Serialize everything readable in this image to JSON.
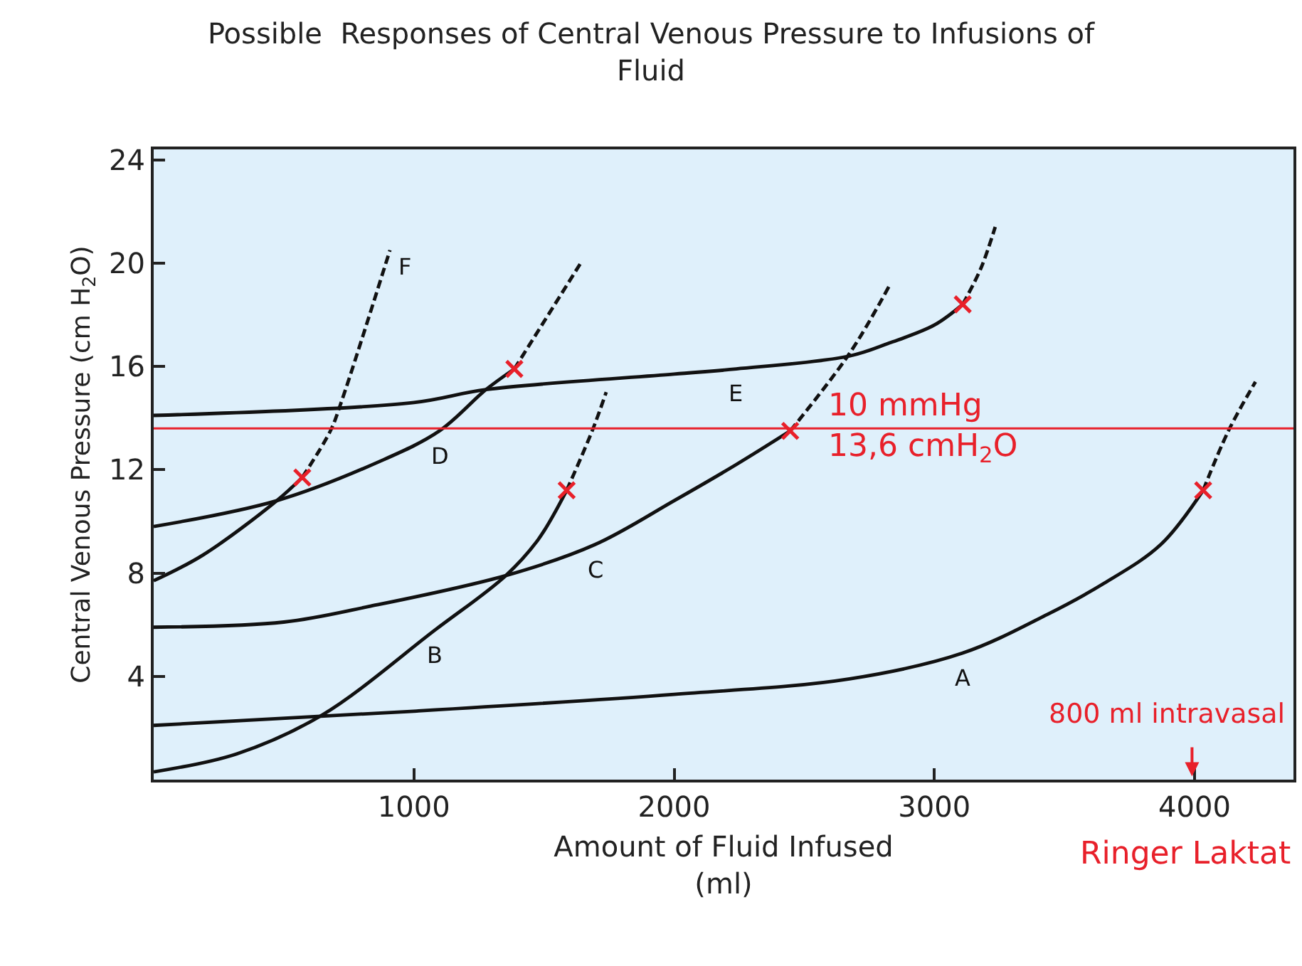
{
  "chart_data": {
    "type": "line",
    "title": "Possible  Responses of Central Venous Pressure to Infusions of Fluid",
    "xlabel": "Amount of Fluid Infused\n(ml)",
    "ylabel": "Central Venous Pressure (cm H$_{2}$O)",
    "xlim": [
      0,
      4380
    ],
    "xticks": [
      1000,
      2000,
      3000,
      4000
    ],
    "ylim": [
      0,
      24.4
    ],
    "yticks": [
      4,
      8,
      12,
      16,
      20,
      24
    ],
    "grid": false,
    "legend": false,
    "marker": "none",
    "series": [
      {
        "name": "A",
        "color": "#111111",
        "line_style": "solid",
        "x": [
          0,
          1000,
          2000,
          2674,
          3109,
          3435,
          3652,
          3870,
          4033
        ],
        "values": [
          2.1,
          2.65,
          3.3,
          3.9,
          4.9,
          6.4,
          7.6,
          9.1,
          11.2
        ]
      },
      {
        "color": "#111111",
        "line_style": "dashed",
        "x": [
          4033,
          4130,
          4234
        ],
        "values": [
          11.2,
          13.5,
          15.4
        ]
      },
      {
        "name": "B",
        "color": "#111111",
        "line_style": "solid",
        "x": [
          0,
          320,
          647,
          1082,
          1353,
          1478,
          1587
        ],
        "values": [
          0.3,
          1.0,
          2.5,
          5.8,
          7.9,
          9.3,
          11.2
        ]
      },
      {
        "color": "#111111",
        "line_style": "dashed",
        "x": [
          1587,
          1685,
          1739
        ],
        "values": [
          11.2,
          13.5,
          15.0
        ]
      },
      {
        "name": "C",
        "color": "#111111",
        "line_style": "solid",
        "x": [
          0,
          500,
          826,
          1353,
          1696,
          2000,
          2239,
          2446
        ],
        "values": [
          5.9,
          6.1,
          6.7,
          7.9,
          9.1,
          10.8,
          12.2,
          13.5
        ]
      },
      {
        "color": "#111111",
        "line_style": "dashed",
        "x": [
          2446,
          2674,
          2826
        ],
        "values": [
          13.5,
          16.5,
          19.1
        ]
      },
      {
        "name": "D",
        "color": "#111111",
        "line_style": "solid",
        "x": [
          0,
          473,
          864,
          1098,
          1277,
          1386
        ],
        "values": [
          9.8,
          10.8,
          12.3,
          13.5,
          15.1,
          15.9
        ]
      },
      {
        "color": "#111111",
        "line_style": "dashed",
        "x": [
          1386,
          1641
        ],
        "values": [
          15.9,
          20.0
        ]
      },
      {
        "name": "E",
        "color": "#111111",
        "line_style": "solid",
        "x": [
          0,
          1000,
          1277,
          2000,
          2239,
          2674,
          2826,
          3000,
          3109
        ],
        "values": [
          14.1,
          14.6,
          15.1,
          15.7,
          15.9,
          16.4,
          16.9,
          17.6,
          18.4
        ]
      },
      {
        "color": "#111111",
        "line_style": "dashed",
        "x": [
          3109,
          3179,
          3234
        ],
        "values": [
          18.4,
          19.8,
          21.4
        ]
      },
      {
        "color": "#111111",
        "line_style": "solid",
        "x": [
          0,
          190,
          473,
          571
        ],
        "values": [
          7.7,
          8.7,
          10.8,
          11.7
        ]
      },
      {
        "name": "F",
        "color": "#111111",
        "line_style": "dashed",
        "x": [
          571,
          679,
          717,
          908
        ],
        "values": [
          11.7,
          13.5,
          14.5,
          20.5
        ]
      },
      {
        "type": "scatter",
        "marker": "cross",
        "color": "#e8202a",
        "x": [
          4033,
          1587,
          2446,
          1386,
          3109,
          571
        ],
        "values": [
          11.2,
          11.2,
          13.5,
          15.9,
          18.4,
          11.7
        ]
      }
    ],
    "ref_lines": [
      {
        "axis": "y",
        "value": 13.6,
        "label": "10 mmHg\n13,6 cmH$_{2}$O",
        "color": "#e8202a"
      }
    ],
    "annotations": [
      "800 ml intravasal",
      "Ringer Laktat"
    ]
  }
}
